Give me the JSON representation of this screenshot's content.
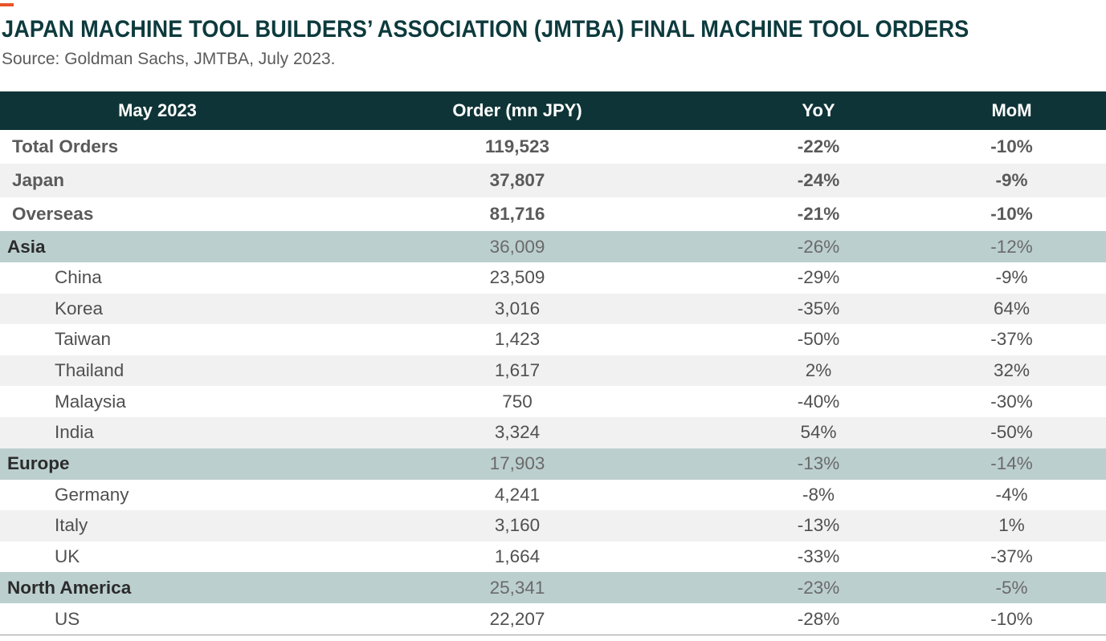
{
  "title": "JAPAN MACHINE TOOL BUILDERS’ ASSOCIATION (JMTBA) FINAL MACHINE TOOL ORDERS",
  "subtitle": "Source: Goldman Sachs, JMTBA, July 2023.",
  "colors": {
    "header_bg": "#0f3437",
    "region_bg": "#bccfcf",
    "accent": "#e8542a",
    "title": "#0d3a3d",
    "alt_row": "#f1f1f1"
  },
  "chart_data": {
    "type": "table",
    "columns": [
      "May 2023",
      "Order (mn JPY)",
      "YoY",
      "MoM"
    ],
    "rows": [
      {
        "label": "Total Orders",
        "order": "119,523",
        "yoy": "-22%",
        "mom": "-10%",
        "kind": "summary"
      },
      {
        "label": "Japan",
        "order": "37,807",
        "yoy": "-24%",
        "mom": "-9%",
        "kind": "summary"
      },
      {
        "label": "Overseas",
        "order": "81,716",
        "yoy": "-21%",
        "mom": "-10%",
        "kind": "summary"
      },
      {
        "label": "Asia",
        "order": "36,009",
        "yoy": "-26%",
        "mom": "-12%",
        "kind": "region"
      },
      {
        "label": "China",
        "order": "23,509",
        "yoy": "-29%",
        "mom": "-9%",
        "kind": "country"
      },
      {
        "label": "Korea",
        "order": "3,016",
        "yoy": "-35%",
        "mom": "64%",
        "kind": "country"
      },
      {
        "label": "Taiwan",
        "order": "1,423",
        "yoy": "-50%",
        "mom": "-37%",
        "kind": "country"
      },
      {
        "label": "Thailand",
        "order": "1,617",
        "yoy": "2%",
        "mom": "32%",
        "kind": "country"
      },
      {
        "label": "Malaysia",
        "order": "750",
        "yoy": "-40%",
        "mom": "-30%",
        "kind": "country"
      },
      {
        "label": "India",
        "order": "3,324",
        "yoy": "54%",
        "mom": "-50%",
        "kind": "country"
      },
      {
        "label": "Europe",
        "order": "17,903",
        "yoy": "-13%",
        "mom": "-14%",
        "kind": "region"
      },
      {
        "label": "Germany",
        "order": "4,241",
        "yoy": "-8%",
        "mom": "-4%",
        "kind": "country"
      },
      {
        "label": "Italy",
        "order": "3,160",
        "yoy": "-13%",
        "mom": "1%",
        "kind": "country"
      },
      {
        "label": "UK",
        "order": "1,664",
        "yoy": "-33%",
        "mom": "-37%",
        "kind": "country"
      },
      {
        "label": "North America",
        "order": "25,341",
        "yoy": "-23%",
        "mom": "-5%",
        "kind": "region"
      },
      {
        "label": "US",
        "order": "22,207",
        "yoy": "-28%",
        "mom": "-10%",
        "kind": "country"
      }
    ]
  }
}
